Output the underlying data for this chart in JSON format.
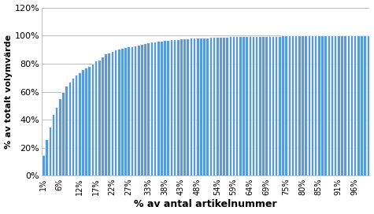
{
  "xlabel": "% av antal artikelnummer",
  "ylabel": "% av totalt volymvärde",
  "bar_color": "#5B9BD5",
  "bar_edge_color": "#FFFFFF",
  "background_color": "#FFFFFF",
  "ylim": [
    0,
    1.2
  ],
  "yticks": [
    0,
    0.2,
    0.4,
    0.6,
    0.8,
    1.0,
    1.2
  ],
  "ytick_labels": [
    "0%",
    "20%",
    "40%",
    "60%",
    "80%",
    "100%",
    "120%"
  ],
  "xtick_labels": [
    "1%",
    "6%",
    "12%",
    "17%",
    "22%",
    "27%",
    "33%",
    "38%",
    "43%",
    "48%",
    "54%",
    "59%",
    "64%",
    "69%",
    "75%",
    "80%",
    "85%",
    "91%",
    "96%"
  ],
  "values": [
    0.15,
    0.26,
    0.35,
    0.44,
    0.49,
    0.55,
    0.6,
    0.64,
    0.67,
    0.7,
    0.72,
    0.74,
    0.76,
    0.77,
    0.78,
    0.8,
    0.82,
    0.83,
    0.85,
    0.87,
    0.88,
    0.89,
    0.9,
    0.905,
    0.91,
    0.915,
    0.92,
    0.925,
    0.93,
    0.935,
    0.94,
    0.945,
    0.95,
    0.954,
    0.957,
    0.96,
    0.963,
    0.966,
    0.969,
    0.971,
    0.973,
    0.975,
    0.977,
    0.979,
    0.98,
    0.982,
    0.983,
    0.984,
    0.985,
    0.986,
    0.987,
    0.988,
    0.989,
    0.99,
    0.991,
    0.992,
    0.992,
    0.993,
    0.993,
    0.994,
    0.994,
    0.995,
    0.995,
    0.995,
    0.996,
    0.996,
    0.997,
    0.997,
    0.997,
    0.998,
    0.998,
    0.998,
    0.998,
    0.999,
    0.999,
    0.999,
    0.999,
    0.999,
    0.999,
    0.999,
    1.0,
    1.0,
    1.0,
    1.0,
    1.0,
    1.0,
    1.0,
    1.0,
    1.0,
    1.0,
    1.0,
    1.0,
    1.0,
    1.0,
    1.0,
    1.0,
    1.0,
    1.0,
    1.0,
    1.0
  ],
  "xtick_positions": [
    0,
    5,
    11,
    16,
    21,
    26,
    32,
    37,
    42,
    47,
    53,
    58,
    63,
    68,
    74,
    79,
    84,
    90,
    95
  ],
  "grid_color": "#BEBEBE",
  "grid_linewidth": 0.7,
  "ylabel_fontsize": 8,
  "xlabel_fontsize": 9,
  "ytick_fontsize": 8,
  "xtick_fontsize": 7
}
